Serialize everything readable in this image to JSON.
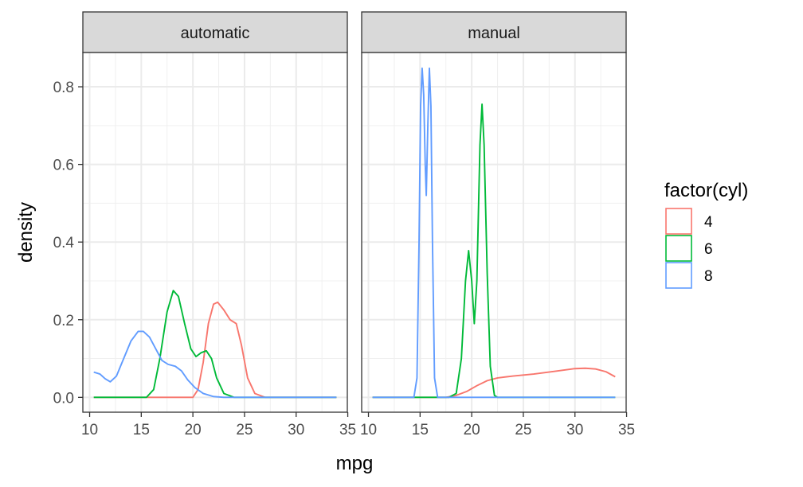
{
  "chart_data": {
    "type": "line",
    "xlabel": "mpg",
    "ylabel": "density",
    "xlim": [
      10.4,
      33.9
    ],
    "ylim": [
      0,
      0.85
    ],
    "x_ticks": [
      10,
      15,
      20,
      25,
      30,
      35
    ],
    "y_ticks": [
      0.0,
      0.2,
      0.4,
      0.6,
      0.8
    ],
    "y_tick_labels": [
      "0.0",
      "0.2",
      "0.4",
      "0.6",
      "0.8"
    ],
    "x_tick_labels_left": [
      "10",
      "15",
      "20",
      "25",
      "30",
      "35"
    ],
    "x_tick_labels_right": [
      "10",
      "15",
      "20",
      "25",
      "30",
      "35"
    ],
    "grid": true,
    "legend": {
      "title": "factor(cyl)",
      "placement": "right",
      "entries": [
        {
          "label": "4",
          "color": "#F8766D"
        },
        {
          "label": "6",
          "color": "#00BA38"
        },
        {
          "label": "8",
          "color": "#619CFF"
        }
      ]
    },
    "panels": [
      {
        "strip": "automatic",
        "series": [
          {
            "name": "4",
            "color": "#F8766D",
            "points": [
              [
                10.4,
                0
              ],
              [
                20.0,
                0
              ],
              [
                20.5,
                0.02
              ],
              [
                21.0,
                0.09
              ],
              [
                21.5,
                0.19
              ],
              [
                22.0,
                0.24
              ],
              [
                22.4,
                0.245
              ],
              [
                23.0,
                0.225
              ],
              [
                23.6,
                0.2
              ],
              [
                24.2,
                0.19
              ],
              [
                24.7,
                0.135
              ],
              [
                25.3,
                0.05
              ],
              [
                26.0,
                0.01
              ],
              [
                27.0,
                0
              ],
              [
                33.9,
                0
              ]
            ]
          },
          {
            "name": "6",
            "color": "#00BA38",
            "points": [
              [
                10.4,
                0
              ],
              [
                15.5,
                0
              ],
              [
                16.2,
                0.02
              ],
              [
                16.8,
                0.1
              ],
              [
                17.5,
                0.22
              ],
              [
                18.1,
                0.275
              ],
              [
                18.6,
                0.26
              ],
              [
                19.2,
                0.19
              ],
              [
                19.8,
                0.125
              ],
              [
                20.3,
                0.105
              ],
              [
                20.8,
                0.115
              ],
              [
                21.3,
                0.12
              ],
              [
                21.8,
                0.1
              ],
              [
                22.3,
                0.05
              ],
              [
                23.0,
                0.01
              ],
              [
                24.0,
                0
              ],
              [
                33.9,
                0
              ]
            ]
          },
          {
            "name": "8",
            "color": "#619CFF",
            "points": [
              [
                10.4,
                0.065
              ],
              [
                11.0,
                0.06
              ],
              [
                11.5,
                0.048
              ],
              [
                12.0,
                0.04
              ],
              [
                12.6,
                0.055
              ],
              [
                13.3,
                0.1
              ],
              [
                14.0,
                0.145
              ],
              [
                14.7,
                0.17
              ],
              [
                15.2,
                0.17
              ],
              [
                15.8,
                0.155
              ],
              [
                16.4,
                0.125
              ],
              [
                17.0,
                0.095
              ],
              [
                17.6,
                0.085
              ],
              [
                18.3,
                0.08
              ],
              [
                18.9,
                0.068
              ],
              [
                19.5,
                0.045
              ],
              [
                20.2,
                0.025
              ],
              [
                21.0,
                0.01
              ],
              [
                22.0,
                0.002
              ],
              [
                23.0,
                0
              ],
              [
                33.9,
                0
              ]
            ]
          }
        ]
      },
      {
        "strip": "manual",
        "series": [
          {
            "name": "4",
            "color": "#F8766D",
            "points": [
              [
                10.4,
                0
              ],
              [
                17.5,
                0
              ],
              [
                18.5,
                0.005
              ],
              [
                19.5,
                0.015
              ],
              [
                20.5,
                0.03
              ],
              [
                21.5,
                0.043
              ],
              [
                22.5,
                0.05
              ],
              [
                24.0,
                0.055
              ],
              [
                26.0,
                0.06
              ],
              [
                28.0,
                0.067
              ],
              [
                30.0,
                0.074
              ],
              [
                31.0,
                0.075
              ],
              [
                32.0,
                0.073
              ],
              [
                33.0,
                0.066
              ],
              [
                33.9,
                0.053
              ]
            ]
          },
          {
            "name": "6",
            "color": "#00BA38",
            "points": [
              [
                10.4,
                0
              ],
              [
                17.8,
                0
              ],
              [
                18.5,
                0.01
              ],
              [
                19.0,
                0.1
              ],
              [
                19.4,
                0.3
              ],
              [
                19.7,
                0.378
              ],
              [
                20.0,
                0.3
              ],
              [
                20.25,
                0.19
              ],
              [
                20.5,
                0.3
              ],
              [
                20.8,
                0.65
              ],
              [
                21.0,
                0.755
              ],
              [
                21.2,
                0.65
              ],
              [
                21.5,
                0.32
              ],
              [
                21.8,
                0.08
              ],
              [
                22.2,
                0.005
              ],
              [
                22.5,
                0
              ],
              [
                33.9,
                0
              ]
            ]
          },
          {
            "name": "8",
            "color": "#619CFF",
            "points": [
              [
                10.4,
                0
              ],
              [
                14.4,
                0
              ],
              [
                14.7,
                0.05
              ],
              [
                14.9,
                0.4
              ],
              [
                15.05,
                0.75
              ],
              [
                15.2,
                0.848
              ],
              [
                15.35,
                0.78
              ],
              [
                15.5,
                0.6
              ],
              [
                15.6,
                0.52
              ],
              [
                15.75,
                0.7
              ],
              [
                15.9,
                0.848
              ],
              [
                16.05,
                0.75
              ],
              [
                16.2,
                0.4
              ],
              [
                16.4,
                0.05
              ],
              [
                16.7,
                0
              ],
              [
                33.9,
                0
              ]
            ]
          }
        ]
      }
    ]
  }
}
